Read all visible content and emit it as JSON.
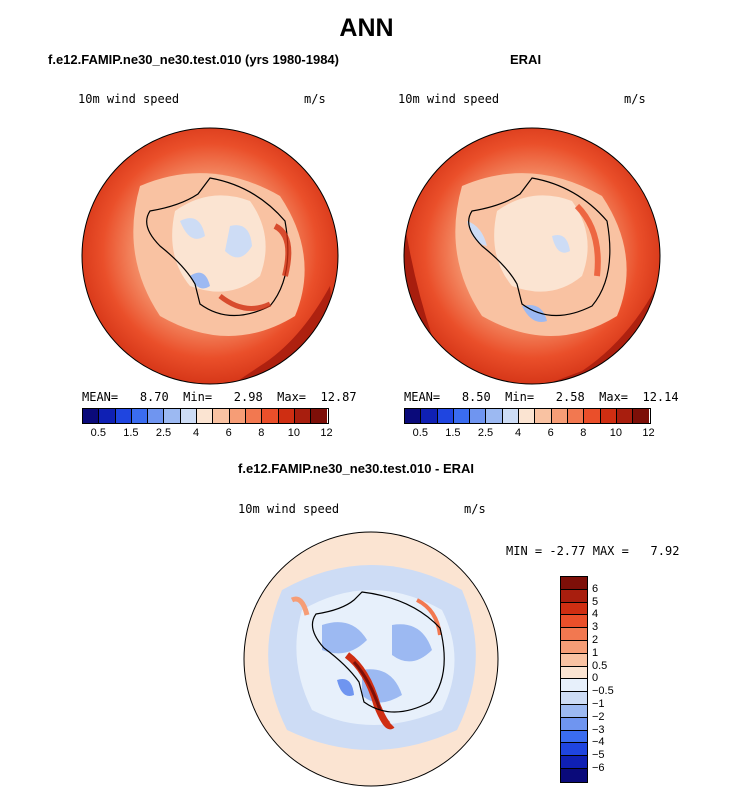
{
  "title": "ANN",
  "panels": {
    "model": {
      "case_title": "f.e12.FAMIP.ne30_ne30.test.010 (yrs 1980-1984)",
      "variable": "10m wind speed",
      "units": "m/s",
      "stats": {
        "mean_label": "MEAN=",
        "mean": "8.70",
        "min_label": "Min=",
        "min": "2.98",
        "max_label": "Max=",
        "max": "12.87"
      }
    },
    "obs": {
      "case_title": "ERAI",
      "variable": "10m wind speed",
      "units": "m/s",
      "stats": {
        "mean_label": "MEAN=",
        "mean": "8.50",
        "min_label": "Min=",
        "min": "2.58",
        "max_label": "Max=",
        "max": "12.14"
      }
    },
    "diff": {
      "case_title": "f.e12.FAMIP.ne30_ne30.test.010 - ERAI",
      "variable": "10m wind speed",
      "units": "m/s",
      "stats": {
        "min_label": "MIN =",
        "min": "-2.77",
        "max_label": "MAX =",
        "max": "7.92"
      }
    }
  },
  "colorbars": {
    "abs": {
      "colors": [
        "#0a0a7a",
        "#0f20b4",
        "#1f45e0",
        "#3a6cf0",
        "#6f95f0",
        "#9cb9f2",
        "#cddcf5",
        "#fbe4d2",
        "#f9c2a2",
        "#f69d76",
        "#f27850",
        "#ea4f2a",
        "#cf2e12",
        "#a81e0e",
        "#7d0f08"
      ],
      "labels": [
        "0.5",
        "1.5",
        "2.5",
        "4",
        "6",
        "8",
        "10",
        "12"
      ]
    },
    "diff": {
      "colors": [
        "#7d0f08",
        "#a81e0e",
        "#cf2e12",
        "#ea4f2a",
        "#f27850",
        "#f69d76",
        "#f9c2a2",
        "#fbe4d2",
        "#e7f0fb",
        "#cddcf5",
        "#9cb9f2",
        "#6f95f0",
        "#3a6cf0",
        "#1f45e0",
        "#0f20b4",
        "#0a0a7a"
      ],
      "labels": [
        "6",
        "5",
        "4",
        "3",
        "2",
        "1",
        "0.5",
        "0",
        "−0.5",
        "−1",
        "−2",
        "−3",
        "−4",
        "−5",
        "−6"
      ]
    }
  }
}
